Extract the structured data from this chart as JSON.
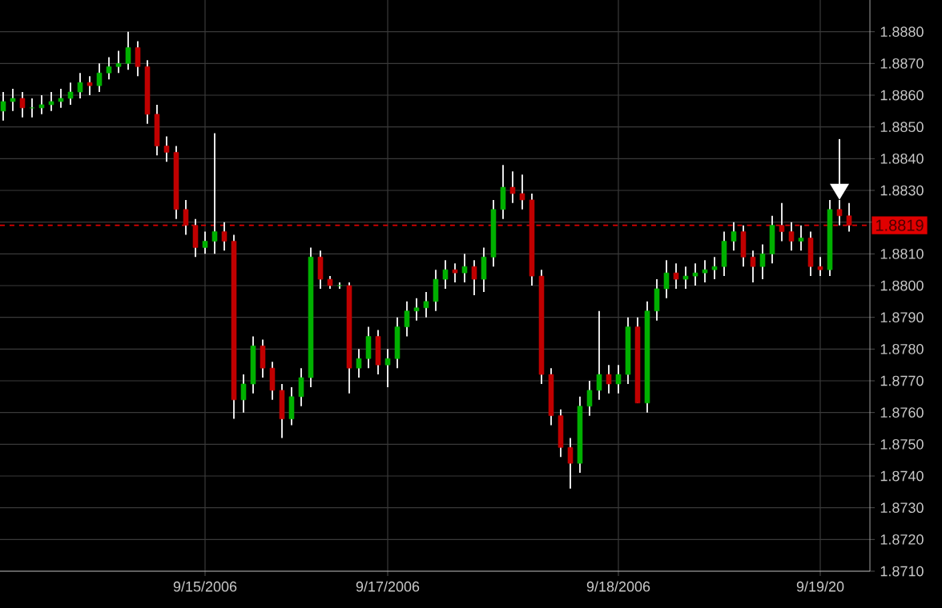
{
  "chart_data": {
    "type": "candlestick",
    "categories": [
      null,
      null,
      null,
      null,
      null,
      null,
      null,
      null,
      null,
      null,
      null,
      null,
      null,
      null,
      null,
      null,
      null,
      null,
      null,
      null,
      null,
      "9/15/2006",
      null,
      null,
      null,
      null,
      null,
      null,
      null,
      null,
      null,
      null,
      null,
      null,
      null,
      null,
      null,
      null,
      null,
      null,
      "9/17/2006",
      null,
      null,
      null,
      null,
      null,
      null,
      null,
      null,
      null,
      null,
      null,
      null,
      null,
      null,
      null,
      null,
      null,
      null,
      null,
      null,
      null,
      null,
      null,
      "9/18/2006",
      null,
      null,
      null,
      null,
      null,
      null,
      null,
      null,
      null,
      null,
      null,
      null,
      null,
      null,
      null,
      null,
      null,
      null,
      null,
      null,
      "9/19/20",
      null,
      null,
      null
    ],
    "ohlc": [
      [
        1.8855,
        1.8861,
        1.8852,
        1.8858
      ],
      [
        1.8858,
        1.8862,
        1.8855,
        1.8859
      ],
      [
        1.8859,
        1.8861,
        1.8853,
        1.8856
      ],
      [
        1.8856,
        1.8859,
        1.8853,
        1.8856
      ],
      [
        1.8856,
        1.886,
        1.8854,
        1.8857
      ],
      [
        1.8857,
        1.8861,
        1.8855,
        1.8858
      ],
      [
        1.8858,
        1.8862,
        1.8856,
        1.8859
      ],
      [
        1.8859,
        1.8864,
        1.8857,
        1.8861
      ],
      [
        1.8861,
        1.8867,
        1.8859,
        1.8864
      ],
      [
        1.8864,
        1.8866,
        1.886,
        1.8863
      ],
      [
        1.8863,
        1.887,
        1.8861,
        1.8867
      ],
      [
        1.8867,
        1.8872,
        1.8865,
        1.8869
      ],
      [
        1.8869,
        1.8874,
        1.8867,
        1.887
      ],
      [
        1.887,
        1.888,
        1.8868,
        1.8875
      ],
      [
        1.8875,
        1.8877,
        1.8866,
        1.8869
      ],
      [
        1.8869,
        1.8871,
        1.8851,
        1.8854
      ],
      [
        1.8854,
        1.8857,
        1.8841,
        1.8844
      ],
      [
        1.8844,
        1.8847,
        1.8839,
        1.8842
      ],
      [
        1.8842,
        1.8844,
        1.8821,
        1.8824
      ],
      [
        1.8824,
        1.8827,
        1.8816,
        1.8819
      ],
      [
        1.8819,
        1.8821,
        1.8809,
        1.8812
      ],
      [
        1.8812,
        1.8817,
        1.881,
        1.8814
      ],
      [
        1.8814,
        1.8848,
        1.881,
        1.8817
      ],
      [
        1.8817,
        1.882,
        1.8811,
        1.8814
      ],
      [
        1.8814,
        1.8816,
        1.8758,
        1.8764
      ],
      [
        1.8764,
        1.8772,
        1.876,
        1.8769
      ],
      [
        1.8769,
        1.8784,
        1.8766,
        1.8781
      ],
      [
        1.8781,
        1.8783,
        1.8771,
        1.8774
      ],
      [
        1.8774,
        1.8776,
        1.8764,
        1.8767
      ],
      [
        1.8767,
        1.8769,
        1.8752,
        1.8758
      ],
      [
        1.8758,
        1.8768,
        1.8756,
        1.8765
      ],
      [
        1.8765,
        1.8774,
        1.8762,
        1.8771
      ],
      [
        1.8771,
        1.8812,
        1.8768,
        1.8809
      ],
      [
        1.8809,
        1.8811,
        1.8799,
        1.8802
      ],
      [
        1.8802,
        1.8803,
        1.8799,
        1.88
      ],
      [
        1.88,
        1.8801,
        1.8799,
        1.88
      ],
      [
        1.88,
        1.8801,
        1.8766,
        1.8774
      ],
      [
        1.8774,
        1.878,
        1.8771,
        1.8777
      ],
      [
        1.8777,
        1.8787,
        1.8774,
        1.8784
      ],
      [
        1.8784,
        1.8786,
        1.8772,
        1.8775
      ],
      [
        1.8775,
        1.878,
        1.8768,
        1.8777
      ],
      [
        1.8777,
        1.879,
        1.8774,
        1.8787
      ],
      [
        1.8787,
        1.8795,
        1.8784,
        1.8792
      ],
      [
        1.8792,
        1.8796,
        1.8789,
        1.8793
      ],
      [
        1.8793,
        1.8798,
        1.879,
        1.8795
      ],
      [
        1.8795,
        1.8805,
        1.8792,
        1.8802
      ],
      [
        1.8802,
        1.8808,
        1.8799,
        1.8805
      ],
      [
        1.8805,
        1.8807,
        1.8801,
        1.8804
      ],
      [
        1.8804,
        1.881,
        1.8801,
        1.8806
      ],
      [
        1.8806,
        1.8808,
        1.8797,
        1.8802
      ],
      [
        1.8802,
        1.8812,
        1.8798,
        1.8809
      ],
      [
        1.8809,
        1.8827,
        1.8806,
        1.8824
      ],
      [
        1.8824,
        1.8838,
        1.8821,
        1.8831
      ],
      [
        1.8831,
        1.8836,
        1.8826,
        1.8829
      ],
      [
        1.8829,
        1.8835,
        1.8824,
        1.8827
      ],
      [
        1.8827,
        1.8829,
        1.88,
        1.8803
      ],
      [
        1.8803,
        1.8805,
        1.8769,
        1.8772
      ],
      [
        1.8772,
        1.8774,
        1.8756,
        1.8759
      ],
      [
        1.8759,
        1.8761,
        1.8746,
        1.8749
      ],
      [
        1.8749,
        1.8752,
        1.8736,
        1.8744
      ],
      [
        1.8744,
        1.8765,
        1.8741,
        1.8762
      ],
      [
        1.8762,
        1.877,
        1.8759,
        1.8767
      ],
      [
        1.8767,
        1.8792,
        1.8764,
        1.8772
      ],
      [
        1.8772,
        1.8775,
        1.8766,
        1.8769
      ],
      [
        1.8769,
        1.8775,
        1.8766,
        1.8772
      ],
      [
        1.8772,
        1.879,
        1.8769,
        1.8787
      ],
      [
        1.8787,
        1.879,
        1.8763,
        1.8763
      ],
      [
        1.8763,
        1.8795,
        1.876,
        1.8792
      ],
      [
        1.8792,
        1.8802,
        1.8789,
        1.8799
      ],
      [
        1.8799,
        1.8808,
        1.8796,
        1.8804
      ],
      [
        1.8804,
        1.8807,
        1.8799,
        1.8802
      ],
      [
        1.8802,
        1.8806,
        1.8799,
        1.8803
      ],
      [
        1.8803,
        1.8807,
        1.88,
        1.8804
      ],
      [
        1.8804,
        1.8808,
        1.8801,
        1.8805
      ],
      [
        1.8805,
        1.8809,
        1.8802,
        1.8806
      ],
      [
        1.8806,
        1.8817,
        1.8803,
        1.8814
      ],
      [
        1.8814,
        1.882,
        1.8811,
        1.8817
      ],
      [
        1.8817,
        1.8819,
        1.8806,
        1.8809
      ],
      [
        1.8809,
        1.8811,
        1.8801,
        1.8806
      ],
      [
        1.8806,
        1.8813,
        1.8802,
        1.881
      ],
      [
        1.881,
        1.8822,
        1.8807,
        1.8819
      ],
      [
        1.8819,
        1.8826,
        1.8814,
        1.8817
      ],
      [
        1.8817,
        1.882,
        1.8811,
        1.8814
      ],
      [
        1.8814,
        1.8819,
        1.8811,
        1.8815
      ],
      [
        1.8815,
        1.8817,
        1.8803,
        1.8806
      ],
      [
        1.8806,
        1.8809,
        1.8803,
        1.8805
      ],
      [
        1.8805,
        1.8827,
        1.8803,
        1.8824
      ],
      [
        1.8824,
        1.8827,
        1.8819,
        1.8822
      ],
      [
        1.8822,
        1.8826,
        1.8817,
        1.8819
      ]
    ],
    "ylim": [
      1.871,
      1.889
    ],
    "yticks": [
      {
        "value": 1.871,
        "label": "1.8710"
      },
      {
        "value": 1.872,
        "label": "1.8720"
      },
      {
        "value": 1.873,
        "label": "1.8730"
      },
      {
        "value": 1.874,
        "label": "1.8740"
      },
      {
        "value": 1.875,
        "label": "1.8750"
      },
      {
        "value": 1.876,
        "label": "1.8760"
      },
      {
        "value": 1.877,
        "label": "1.8770"
      },
      {
        "value": 1.878,
        "label": "1.8780"
      },
      {
        "value": 1.879,
        "label": "1.8790"
      },
      {
        "value": 1.88,
        "label": "1.8800"
      },
      {
        "value": 1.881,
        "label": "1.8810"
      },
      {
        "value": 1.882,
        "label": null
      },
      {
        "value": 1.883,
        "label": "1.8830"
      },
      {
        "value": 1.884,
        "label": "1.8840"
      },
      {
        "value": 1.885,
        "label": "1.8850"
      },
      {
        "value": 1.886,
        "label": "1.8860"
      },
      {
        "value": 1.887,
        "label": "1.8870"
      },
      {
        "value": 1.888,
        "label": "1.8880"
      }
    ],
    "ref_lines": [
      {
        "axis": "y",
        "value": 1.8819,
        "label": "1.8819",
        "color": "#e00000",
        "line_style": "dashed"
      }
    ],
    "grid": true
  }
}
